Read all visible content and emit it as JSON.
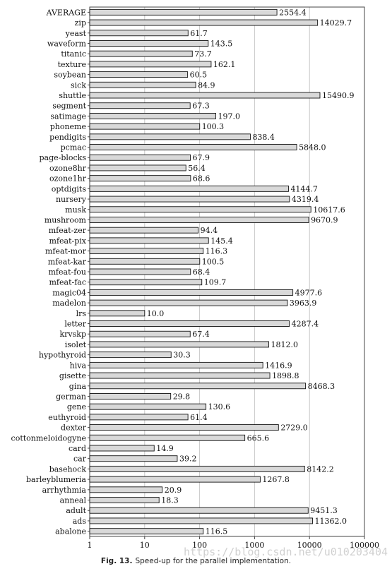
{
  "chart_data": {
    "type": "bar",
    "orientation": "horizontal",
    "x_scale": "log",
    "xlim": [
      1,
      100000
    ],
    "x_ticks": [
      "1",
      "10",
      "100",
      "1000",
      "10000",
      "100000"
    ],
    "grid": "vertical",
    "bar_color": "#d9d9d9",
    "categories": [
      "AVERAGE",
      "zip",
      "yeast",
      "waveform",
      "titanic",
      "texture",
      "soybean",
      "sick",
      "shuttle",
      "segment",
      "satimage",
      "phoneme",
      "pendigits",
      "pcmac",
      "page-blocks",
      "ozone8hr",
      "ozone1hr",
      "optdigits",
      "nursery",
      "musk",
      "mushroom",
      "mfeat-zer",
      "mfeat-pix",
      "mfeat-mor",
      "mfeat-kar",
      "mfeat-fou",
      "mfeat-fac",
      "magic04",
      "madelon",
      "lrs",
      "letter",
      "krvskp",
      "isolet",
      "hypothyroid",
      "hiva",
      "gisette",
      "gina",
      "german",
      "gene",
      "euthyroid",
      "dexter",
      "cottonmeloidogyne",
      "card",
      "car",
      "basehock",
      "barleyblumeria",
      "arrhythmia",
      "anneal",
      "adult",
      "ads",
      "abalone"
    ],
    "values": [
      2554.4,
      14029.7,
      61.7,
      143.5,
      73.7,
      162.1,
      60.5,
      84.9,
      15490.9,
      67.3,
      197.0,
      100.3,
      838.4,
      5848.0,
      67.9,
      56.4,
      68.6,
      4144.7,
      4319.4,
      10617.6,
      9670.9,
      94.4,
      145.4,
      116.3,
      100.5,
      68.4,
      109.7,
      4977.6,
      3963.9,
      10.0,
      4287.4,
      67.4,
      1812.0,
      30.3,
      1416.9,
      1898.8,
      8468.3,
      29.8,
      130.6,
      61.4,
      2729.0,
      665.6,
      14.9,
      39.2,
      8142.2,
      1267.8,
      20.9,
      18.3,
      9451.3,
      11362.0,
      116.5
    ],
    "value_labels": [
      "2554.4",
      "14029.7",
      "61.7",
      "143.5",
      "73.7",
      "162.1",
      "60.5",
      "84.9",
      "15490.9",
      "67.3",
      "197.0",
      "100.3",
      "838.4",
      "5848.0",
      "67.9",
      "56.4",
      "68.6",
      "4144.7",
      "4319.4",
      "10617.6",
      "9670.9",
      "94.4",
      "145.4",
      "116.3",
      "100.5",
      "68.4",
      "109.7",
      "4977.6",
      "3963.9",
      "10.0",
      "4287.4",
      "67.4",
      "1812.0",
      "30.3",
      "1416.9",
      "1898.8",
      "8468.3",
      "29.8",
      "130.6",
      "61.4",
      "2729.0",
      "665.6",
      "14.9",
      "39.2",
      "8142.2",
      "1267.8",
      "20.9",
      "18.3",
      "9451.3",
      "11362.0",
      "116.5"
    ]
  },
  "caption": {
    "label": "Fig. 13.",
    "text": "Speed-up for the parallel implementation."
  },
  "watermark": "https://blog.csdn.net/u010203404"
}
